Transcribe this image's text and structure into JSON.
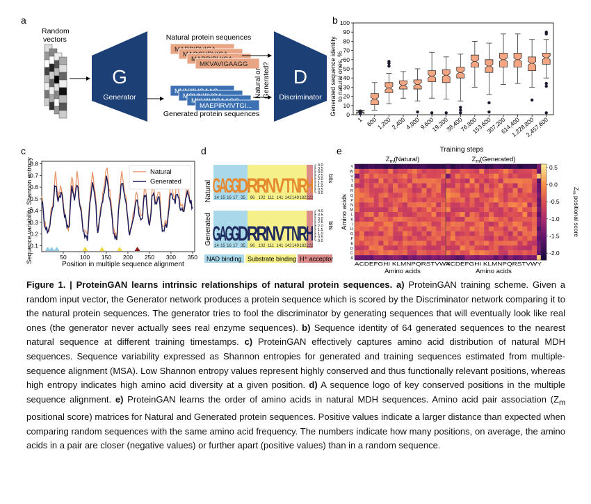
{
  "panel_a": {
    "letter": "a",
    "random_vectors_label": [
      "Random",
      "vectors"
    ],
    "generator_letter": "G",
    "generator_label": "Generator",
    "discriminator_letter": "D",
    "discriminator_label": "Discriminator",
    "natural_title": "Natural protein sequences",
    "generated_title": "Generated protein sequences",
    "natural_seqs": [
      "MARPIRVIGA",
      "MAQGVRVIGA",
      "MARPIRVIGA",
      "MKVAVIGAAGG"
    ],
    "generated_seqs": [
      "MVNIIIVGAAG",
      "MQVNIIIVGA",
      "MKVAVIGAAGG",
      "MAEPIRVIVTGI..."
    ],
    "question": [
      "Natural or",
      "Generated?"
    ],
    "colors": {
      "block": "#1c3f75",
      "natural": "#e8a584",
      "generated": "#3c72b4"
    }
  },
  "panel_b": {
    "letter": "b",
    "chart_data": {
      "type": "box",
      "ylabel": "Generated sequence identity to natural ones, %",
      "xlabel": "Training steps",
      "ylim": [
        0,
        100
      ],
      "yticks": [
        0,
        10,
        20,
        30,
        40,
        50,
        60,
        70,
        80,
        90,
        100
      ],
      "categories": [
        "1",
        "600",
        "1,200",
        "2,400",
        "4,800",
        "9,600",
        "19,200",
        "38,400",
        "76,800",
        "153,600",
        "307,200",
        "614,400",
        "1,228,800",
        "2,457,600"
      ],
      "boxes": [
        {
          "min": 2,
          "q1": 2.5,
          "median": 3,
          "q3": 4,
          "max": 5,
          "outliers": [
            1,
            4
          ]
        },
        {
          "min": 5,
          "q1": 11,
          "median": 17,
          "q3": 23,
          "max": 35,
          "outliers": []
        },
        {
          "min": 12,
          "q1": 24,
          "median": 29,
          "q3": 35,
          "max": 45,
          "outliers": [
            53,
            56,
            58
          ]
        },
        {
          "min": 18,
          "q1": 28,
          "median": 32,
          "q3": 37,
          "max": 47,
          "outliers": []
        },
        {
          "min": 15,
          "q1": 28,
          "median": 33,
          "q3": 38,
          "max": 50,
          "outliers": [
            3
          ]
        },
        {
          "min": 18,
          "q1": 36,
          "median": 42,
          "q3": 48,
          "max": 68,
          "outliers": [
            2
          ]
        },
        {
          "min": 17,
          "q1": 35,
          "median": 43,
          "q3": 49,
          "max": 63,
          "outliers": [
            2
          ]
        },
        {
          "min": 15,
          "q1": 40,
          "median": 46,
          "q3": 52,
          "max": 66,
          "outliers": [
            2,
            5,
            8
          ]
        },
        {
          "min": 30,
          "q1": 52,
          "median": 58,
          "q3": 65,
          "max": 80,
          "outliers": []
        },
        {
          "min": 22,
          "q1": 46,
          "median": 53,
          "q3": 60,
          "max": 78,
          "outliers": [
            3,
            13
          ]
        },
        {
          "min": 33,
          "q1": 52,
          "median": 60,
          "q3": 67,
          "max": 88,
          "outliers": []
        },
        {
          "min": 34,
          "q1": 52,
          "median": 60,
          "q3": 67,
          "max": 88,
          "outliers": []
        },
        {
          "min": 30,
          "q1": 48,
          "median": 56,
          "q3": 63,
          "max": 82,
          "outliers": [
            16
          ]
        },
        {
          "min": 40,
          "q1": 55,
          "median": 62,
          "q3": 67,
          "max": 82,
          "outliers": [
            2,
            31,
            34,
            88,
            90
          ]
        }
      ],
      "box_color": "#f4a582",
      "outlier_color": "#1a1a2e"
    }
  },
  "panel_c": {
    "letter": "c",
    "chart_data": {
      "type": "line",
      "ylabel": [
        "Sequence variability, Shannon entropy"
      ],
      "xlabel": "Position in multiple sequence alignment",
      "xlim": [
        0,
        355
      ],
      "ylim": [
        0.05,
        0.82
      ],
      "xticks": [
        50,
        100,
        150,
        200,
        250,
        300,
        350
      ],
      "yticks": [
        0.1,
        0.2,
        0.3,
        0.4,
        0.5,
        0.6,
        0.7,
        0.8
      ],
      "series": [
        {
          "name": "Natural",
          "color": "#e8956b",
          "anchors": [
            [
              0,
              0.5
            ],
            [
              8,
              0.28
            ],
            [
              15,
              0.22
            ],
            [
              25,
              0.45
            ],
            [
              32,
              0.72
            ],
            [
              38,
              0.52
            ],
            [
              45,
              0.6
            ],
            [
              55,
              0.35
            ],
            [
              62,
              0.25
            ],
            [
              70,
              0.68
            ],
            [
              76,
              0.5
            ],
            [
              82,
              0.72
            ],
            [
              90,
              0.45
            ],
            [
              98,
              0.22
            ],
            [
              106,
              0.18
            ],
            [
              112,
              0.5
            ],
            [
              118,
              0.74
            ],
            [
              124,
              0.55
            ],
            [
              130,
              0.22
            ],
            [
              138,
              0.45
            ],
            [
              145,
              0.6
            ],
            [
              150,
              0.78
            ],
            [
              158,
              0.55
            ],
            [
              168,
              0.22
            ],
            [
              174,
              0.18
            ],
            [
              180,
              0.5
            ],
            [
              186,
              0.72
            ],
            [
              194,
              0.55
            ],
            [
              204,
              0.22
            ],
            [
              212,
              0.35
            ],
            [
              220,
              0.58
            ],
            [
              226,
              0.4
            ],
            [
              232,
              0.35
            ],
            [
              240,
              0.6
            ],
            [
              250,
              0.3
            ],
            [
              258,
              0.62
            ],
            [
              265,
              0.48
            ],
            [
              272,
              0.58
            ],
            [
              280,
              0.25
            ],
            [
              290,
              0.3
            ],
            [
              300,
              0.6
            ],
            [
              308,
              0.5
            ],
            [
              315,
              0.62
            ],
            [
              322,
              0.45
            ],
            [
              330,
              0.42
            ],
            [
              338,
              0.62
            ],
            [
              345,
              0.5
            ],
            [
              350,
              0.45
            ]
          ]
        },
        {
          "name": "Generated",
          "color": "#1e1e5a",
          "anchors": [
            [
              0,
              0.48
            ],
            [
              8,
              0.27
            ],
            [
              15,
              0.22
            ],
            [
              25,
              0.42
            ],
            [
              32,
              0.62
            ],
            [
              38,
              0.5
            ],
            [
              45,
              0.55
            ],
            [
              55,
              0.33
            ],
            [
              62,
              0.24
            ],
            [
              70,
              0.6
            ],
            [
              76,
              0.48
            ],
            [
              82,
              0.64
            ],
            [
              90,
              0.42
            ],
            [
              98,
              0.2
            ],
            [
              106,
              0.17
            ],
            [
              112,
              0.46
            ],
            [
              118,
              0.65
            ],
            [
              124,
              0.5
            ],
            [
              130,
              0.2
            ],
            [
              138,
              0.42
            ],
            [
              145,
              0.55
            ],
            [
              150,
              0.68
            ],
            [
              158,
              0.5
            ],
            [
              168,
              0.2
            ],
            [
              174,
              0.17
            ],
            [
              180,
              0.46
            ],
            [
              186,
              0.64
            ],
            [
              194,
              0.5
            ],
            [
              204,
              0.2
            ],
            [
              212,
              0.32
            ],
            [
              220,
              0.5
            ],
            [
              226,
              0.38
            ],
            [
              232,
              0.33
            ],
            [
              240,
              0.55
            ],
            [
              250,
              0.28
            ],
            [
              258,
              0.55
            ],
            [
              265,
              0.45
            ],
            [
              272,
              0.5
            ],
            [
              280,
              0.23
            ],
            [
              290,
              0.28
            ],
            [
              300,
              0.55
            ],
            [
              308,
              0.47
            ],
            [
              315,
              0.55
            ],
            [
              322,
              0.42
            ],
            [
              330,
              0.4
            ],
            [
              338,
              0.55
            ],
            [
              345,
              0.47
            ],
            [
              350,
              0.43
            ]
          ]
        }
      ],
      "markers": [
        {
          "pos": 14,
          "color": "#8ecae6"
        },
        {
          "pos": 23,
          "color": "#8ecae6"
        },
        {
          "pos": 35,
          "color": "#8ecae6"
        },
        {
          "pos": 101,
          "color": "#f2d940"
        },
        {
          "pos": 140,
          "color": "#f2d940"
        },
        {
          "pos": 181,
          "color": "#f2d940"
        },
        {
          "pos": 222,
          "color": "#8b1a1a"
        }
      ]
    }
  },
  "panel_d": {
    "letter": "d",
    "row_labels": [
      "Natural",
      "Generated"
    ],
    "bits_label": "bits",
    "positions": [
      "14",
      "15",
      "16",
      "17",
      "35",
      "96",
      "102",
      "111",
      "141",
      "142",
      "149",
      "182",
      "222"
    ],
    "natural_letters": [
      "G",
      "A",
      "G",
      "G",
      "D",
      "R",
      "R",
      "N",
      "V",
      "T",
      "N",
      "R",
      "H"
    ],
    "generated_letters": [
      "G",
      "A",
      "G",
      "G",
      "D",
      "R",
      "R",
      "N",
      "V",
      "T",
      "N",
      "R",
      "H"
    ],
    "bits_ticks": [
      "4.0",
      "3.5",
      "3.0",
      "2.5",
      "2.0",
      "1.5",
      "1.0",
      "0.5",
      "0.0"
    ],
    "legend": [
      {
        "label": "NAD binding",
        "color": "#a8d8ea"
      },
      {
        "label": "Substrate binding",
        "color": "#f5f08a"
      },
      {
        "label": "H⁺ acceptor",
        "color": "#d98a8a"
      }
    ]
  },
  "panel_e": {
    "letter": "e",
    "titles": [
      "Natural",
      "Generated"
    ],
    "title_prefix": "Z",
    "title_sub": "m",
    "xlabel": "Amino acids",
    "ylabel": "Amino acids",
    "amino_acids": [
      "A",
      "C",
      "D",
      "E",
      "F",
      "G",
      "H",
      "I",
      "K",
      "L",
      "M",
      "N",
      "P",
      "Q",
      "R",
      "S",
      "T",
      "V",
      "W",
      "Y"
    ],
    "colorbar_label": "Z",
    "colorbar_label_rest": "positional score",
    "colorbar_ticks": [
      "0.5",
      "0.0",
      "-0.5",
      "-1.0",
      "-1.5",
      "-2.0"
    ],
    "xaxis_text": "ACDEFGHI KLMNPQRSTVWY",
    "yaxis_letters": [
      "Y",
      "W",
      "V",
      "T",
      "S",
      "R",
      "Q",
      "P",
      "N",
      "M",
      "L",
      "K",
      "I",
      "H",
      "G",
      "F",
      "E",
      "D",
      "C",
      "A"
    ]
  },
  "caption": {
    "fig": "Figure 1. | ProteinGAN learns intrinsic relationships of natural protein sequences",
    "a_lbl": "a)",
    "a_txt": "ProteinGAN training scheme. Given a random input vector, the Generator network produces a protein sequence which is scored by the Discriminator network comparing it to the natural protein sequences. The generator tries to fool the discriminator by generating sequences that will eventually look like real ones (the generator never actually sees real enzyme sequences).",
    "b_lbl": "b)",
    "b_txt": "Sequence identity of 64 generated sequences to the nearest natural sequence at different training timestamps.",
    "c_lbl": "c)",
    "c_txt": "ProteinGAN effectively captures amino acid distribution of natural MDH sequences. Sequence variability expressed as Shannon entropies for generated and training sequences estimated from multiple-sequence alignment (MSA). Low Shannon entropy values represent highly conserved and thus functionally relevant positions, whereas high entropy indicates high amino acid diversity at a given position.",
    "d_lbl": "d)",
    "d_txt": "A sequence logo of key conserved positions in the multiple sequence alignment.",
    "e_lbl": "e)",
    "e_txt1": "ProteinGAN learns the order of amino acids in natural MDH sequences. Amino acid pair association (Z",
    "e_sub": "m",
    "e_txt2": "positional score) matrices for Natural and Generated protein sequences. Positive values indicate a larger distance than expected when comparing random sequences with the same amino acid frequency. The numbers indicate how many positions, on average, the amino acids in a pair are closer (negative values) or further apart (positive values) than in a random sequence."
  }
}
